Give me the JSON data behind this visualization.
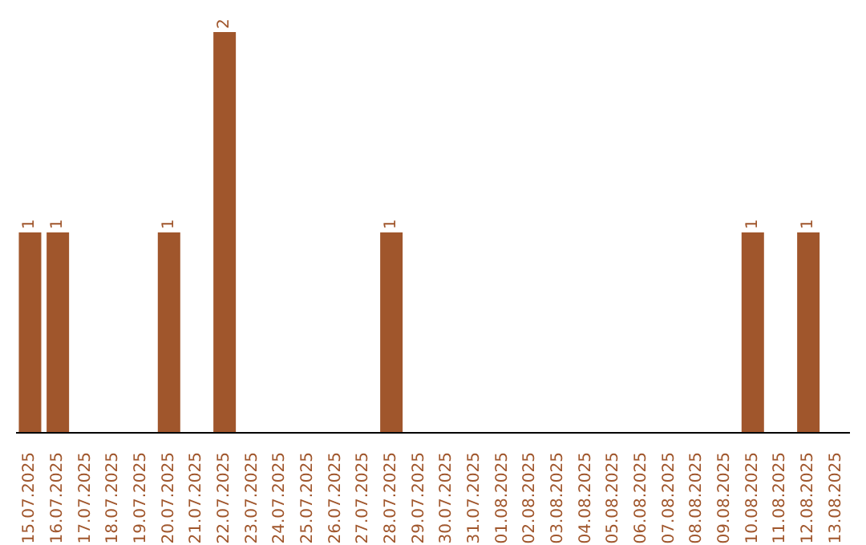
{
  "chart_data": {
    "type": "bar",
    "categories": [
      "15.07.2025",
      "16.07.2025",
      "17.07.2025",
      "18.07.2025",
      "19.07.2025",
      "20.07.2025",
      "21.07.2025",
      "22.07.2025",
      "23.07.2025",
      "24.07.2025",
      "25.07.2025",
      "26.07.2025",
      "27.07.2025",
      "28.07.2025",
      "29.07.2025",
      "30.07.2025",
      "31.07.2025",
      "01.08.2025",
      "02.08.2025",
      "03.08.2025",
      "04.08.2025",
      "05.08.2025",
      "06.08.2025",
      "07.08.2025",
      "08.08.2025",
      "09.08.2025",
      "10.08.2025",
      "11.08.2025",
      "12.08.2025",
      "13.08.2025"
    ],
    "values": [
      1,
      1,
      0,
      0,
      0,
      1,
      0,
      2,
      0,
      0,
      0,
      0,
      0,
      1,
      0,
      0,
      0,
      0,
      0,
      0,
      0,
      0,
      0,
      0,
      0,
      0,
      1,
      0,
      1,
      0
    ],
    "value_labels": [
      "1",
      "1",
      null,
      null,
      null,
      "1",
      null,
      "2",
      null,
      null,
      null,
      null,
      null,
      "1",
      null,
      null,
      null,
      null,
      null,
      null,
      null,
      null,
      null,
      null,
      null,
      null,
      "1",
      null,
      "1",
      null
    ],
    "color": "#a0562c",
    "grid": false,
    "legend": false
  }
}
